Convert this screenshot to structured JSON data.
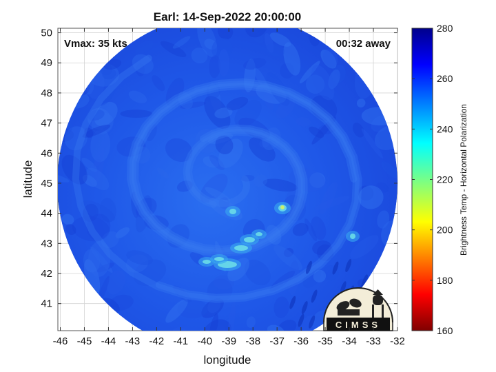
{
  "title": "Earl: 14-Sep-2022 20:00:00",
  "vmax_label": "Vmax: 35 kts",
  "time_label": "00:32 away",
  "xlabel": "longitude",
  "ylabel": "latitude",
  "x_ticks": [
    "-46",
    "-45",
    "-44",
    "-43",
    "-42",
    "-41",
    "-40",
    "-39",
    "-38",
    "-37",
    "-36",
    "-35",
    "-34",
    "-33",
    "-32"
  ],
  "y_ticks": [
    "50",
    "49",
    "48",
    "47",
    "46",
    "45",
    "44",
    "43",
    "42",
    "41"
  ],
  "colorbar": {
    "label": "Brightness Temp - Horizontal Polarization",
    "ticks": [
      "280",
      "260",
      "240",
      "220",
      "200",
      "180",
      "160"
    ],
    "range": [
      160,
      280
    ],
    "colormap": "jet"
  },
  "logo_text": "CIMSS",
  "colors": {
    "background_blue": "#1e50e6",
    "cold_cyan": "#4ec8f0",
    "gridline": "#cccccc"
  },
  "chart_data": {
    "type": "heatmap",
    "title": "Earl: 14-Sep-2022 20:00:00",
    "xlabel": "longitude",
    "ylabel": "latitude",
    "xlim": [
      -46.1,
      -32
    ],
    "ylim": [
      40.1,
      50.15
    ],
    "grid": true,
    "color_range": [
      160,
      280
    ],
    "annotations": [
      "Vmax: 35 kts",
      "00:32 away"
    ]
  }
}
